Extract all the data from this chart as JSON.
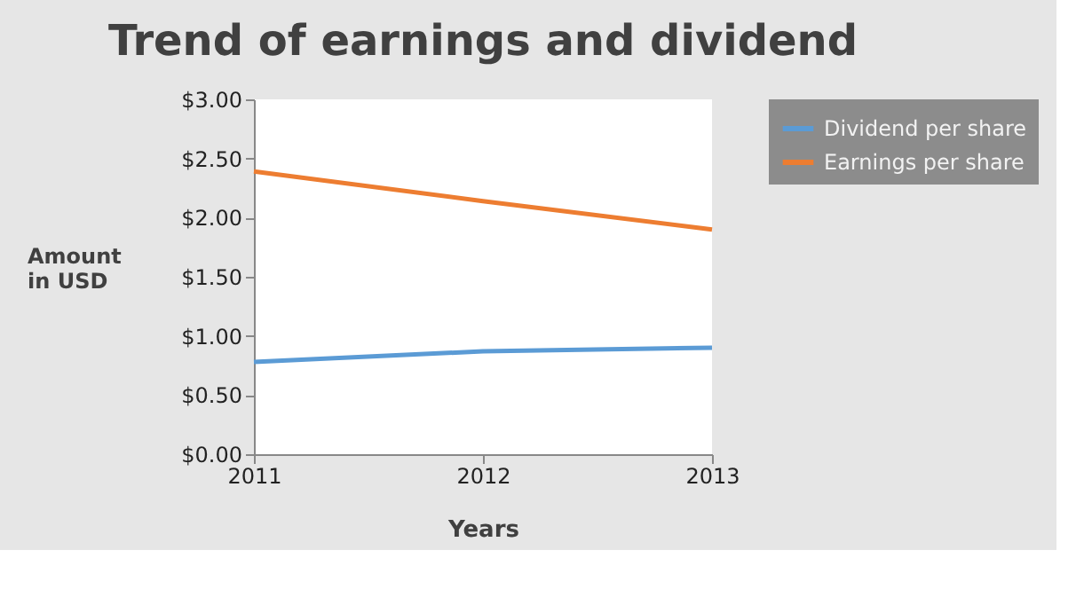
{
  "chart_data": {
    "type": "line",
    "title": "Trend of earnings and dividend",
    "xlabel": "Years",
    "ylabel": "Amount in USD",
    "x": [
      2011,
      2012,
      2013
    ],
    "series": [
      {
        "name": "Dividend per share",
        "color": "#5b9bd5",
        "values": [
          0.78,
          0.87,
          0.9
        ]
      },
      {
        "name": "Earnings per share",
        "color": "#ed7d31",
        "values": [
          2.39,
          2.14,
          1.9
        ]
      }
    ],
    "xlim": [
      2011,
      2013
    ],
    "xticks": [
      2011,
      2012,
      2013
    ],
    "ylim": [
      0,
      3
    ],
    "yticks": [
      {
        "value": 0,
        "label": "$0.00"
      },
      {
        "value": 0.5,
        "label": "$0.50"
      },
      {
        "value": 1,
        "label": "$1.00"
      },
      {
        "value": 1.5,
        "label": "$1.50"
      },
      {
        "value": 2,
        "label": "$2.00"
      },
      {
        "value": 2.5,
        "label": "$2.50"
      },
      {
        "value": 3,
        "label": "$3.00"
      }
    ],
    "grid": false,
    "legend": "right",
    "marker": "none",
    "line_style": "solid"
  }
}
